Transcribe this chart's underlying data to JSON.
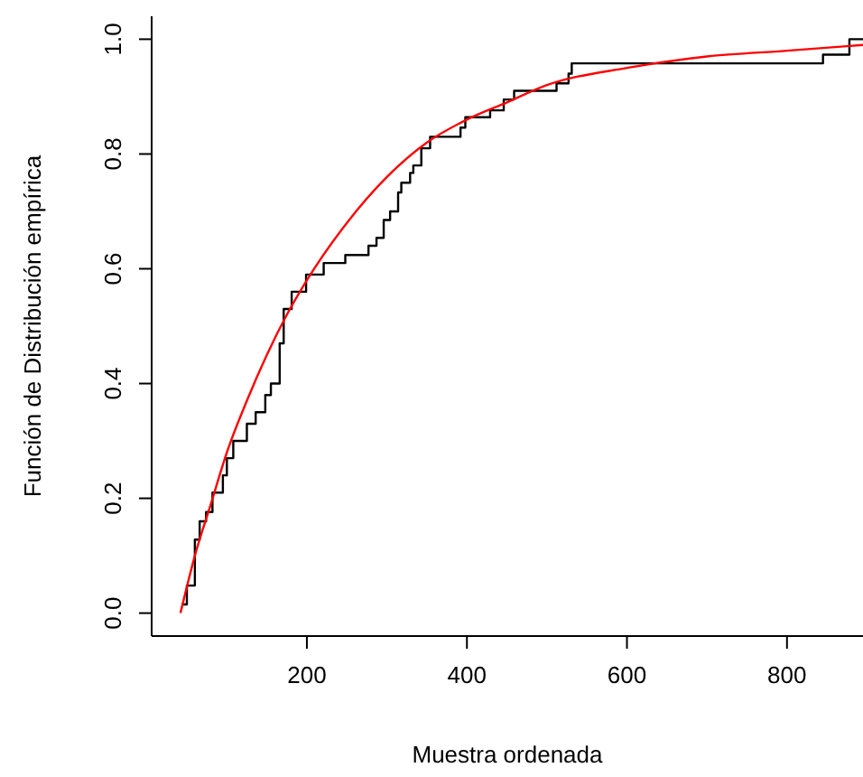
{
  "chart_data": {
    "type": "step",
    "xlabel": "Muestra ordenada",
    "ylabel": "Función de Distribución empírica",
    "xlim": [
      6,
      895
    ],
    "ylim": [
      -0.04,
      1.04
    ],
    "xticks": [
      200,
      400,
      600,
      800
    ],
    "yticks": [
      {
        "value": 0,
        "label": "0.0"
      },
      {
        "value": 0.2,
        "label": "0.2"
      },
      {
        "value": 0.4,
        "label": "0.4"
      },
      {
        "value": 0.6,
        "label": "0.6"
      },
      {
        "value": 0.8,
        "label": "0.8"
      },
      {
        "value": 1,
        "label": "1.0"
      }
    ],
    "marker": "none",
    "series": [
      {
        "color": "#000000",
        "x": [
          44,
          50,
          60,
          66,
          74,
          82,
          95,
          100,
          108,
          125,
          136,
          148,
          155,
          166,
          171,
          181,
          199,
          221,
          248,
          277,
          287,
          296,
          304,
          314,
          318,
          329,
          333,
          343,
          354,
          392,
          398,
          429,
          446,
          459,
          512,
          527,
          531,
          845,
          878,
          895
        ],
        "values": [
          0.015,
          0.048,
          0.128,
          0.16,
          0.176,
          0.21,
          0.24,
          0.27,
          0.3,
          0.33,
          0.35,
          0.38,
          0.4,
          0.47,
          0.53,
          0.56,
          0.59,
          0.61,
          0.624,
          0.64,
          0.654,
          0.685,
          0.7,
          0.733,
          0.75,
          0.767,
          0.78,
          0.81,
          0.83,
          0.846,
          0.864,
          0.876,
          0.895,
          0.91,
          0.923,
          0.94,
          0.958,
          0.973,
          1.0,
          1.0
        ]
      },
      {
        "type": "line",
        "color": "#ff0000",
        "x": [
          42,
          60,
          80,
          100,
          125,
          150,
          175,
          200,
          250,
          300,
          350,
          400,
          450,
          500,
          600,
          700,
          800,
          895
        ],
        "values": [
          0,
          0.1,
          0.19,
          0.28,
          0.37,
          0.45,
          0.52,
          0.58,
          0.68,
          0.76,
          0.82,
          0.86,
          0.89,
          0.92,
          0.95,
          0.97,
          0.98,
          0.99
        ]
      }
    ]
  }
}
